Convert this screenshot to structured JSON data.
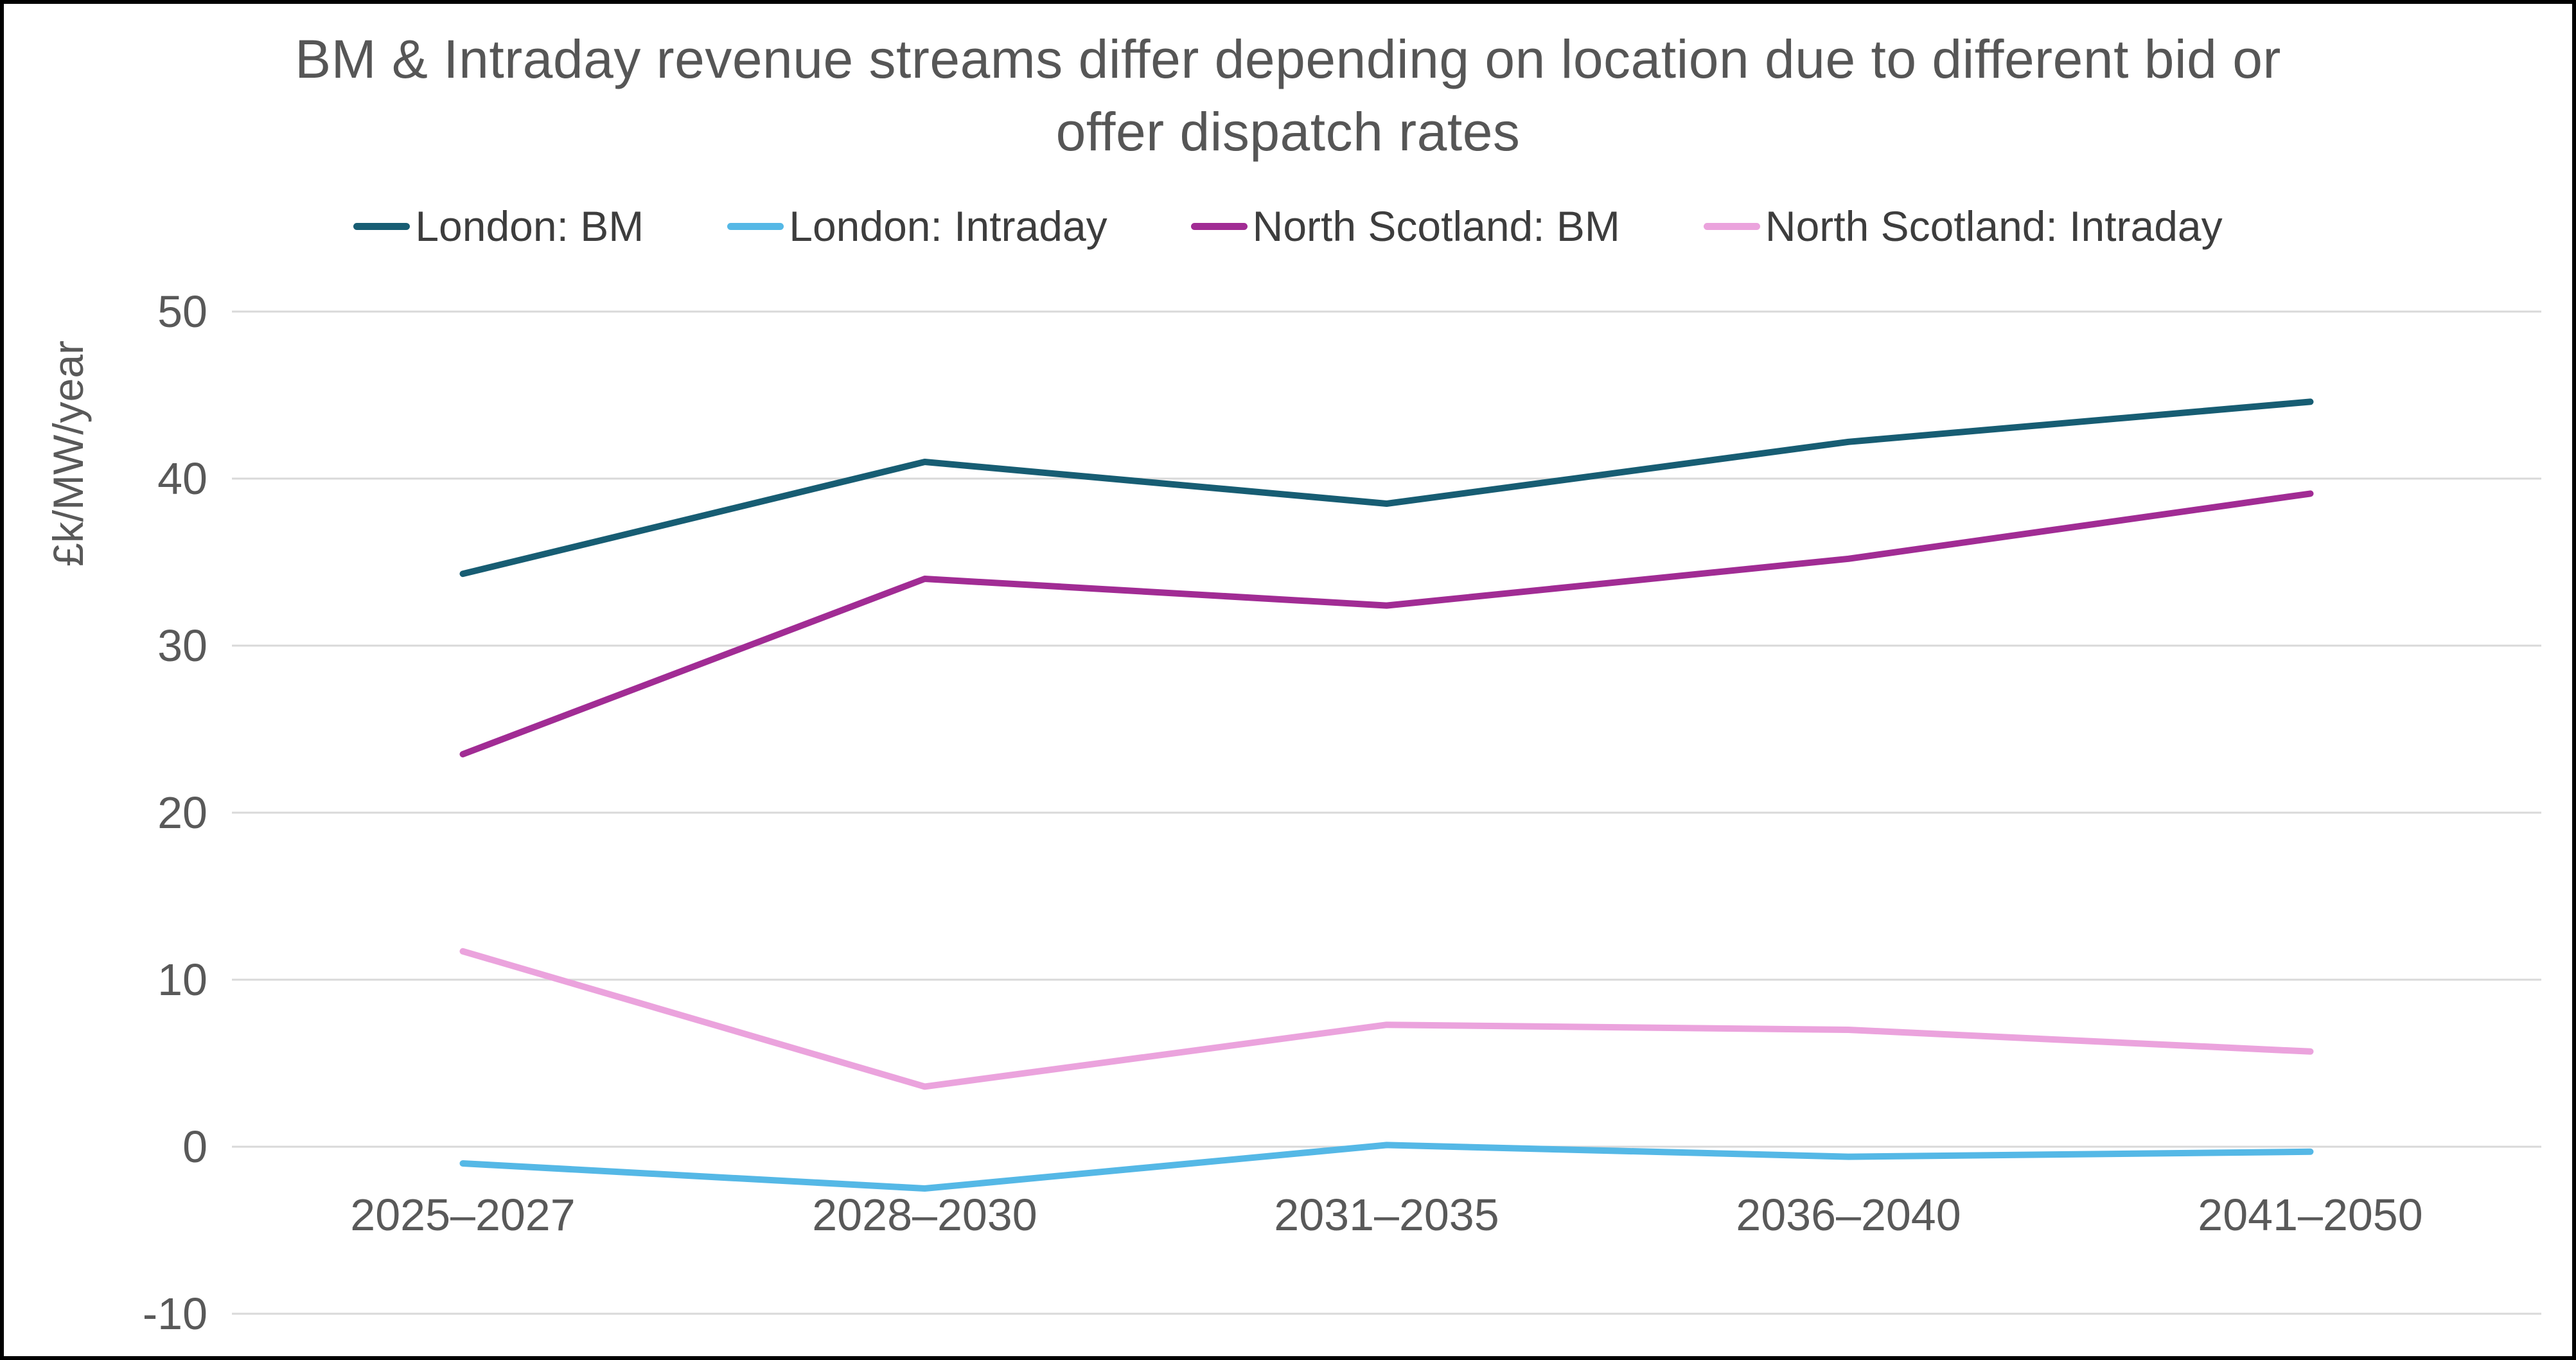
{
  "title": "BM & Intraday revenue streams differ depending on location due to different bid or offer dispatch rates",
  "chart_data": {
    "type": "line",
    "title": "BM & Intraday revenue streams differ depending on location due to different bid or offer dispatch rates",
    "categories": [
      "2025–2027",
      "2028–2030",
      "2031–2035",
      "2036–2040",
      "2041–2050"
    ],
    "series": [
      {
        "name": "London: BM",
        "color": "#175d73",
        "values": [
          34.3,
          41.0,
          38.5,
          42.2,
          44.6
        ]
      },
      {
        "name": "London: Intraday",
        "color": "#55b8e6",
        "values": [
          -1.0,
          -2.5,
          0.1,
          -0.6,
          -0.3
        ]
      },
      {
        "name": "North Scotland: BM",
        "color": "#a12c94",
        "values": [
          23.5,
          34.0,
          32.4,
          35.2,
          39.1
        ]
      },
      {
        "name": "North Scotland: Intraday",
        "color": "#eba3dd",
        "values": [
          11.7,
          3.6,
          7.3,
          7.0,
          5.7
        ]
      }
    ],
    "xlabel": "",
    "ylabel": "£k/MW/year",
    "yticks": [
      -10,
      0,
      10,
      20,
      30,
      40,
      50
    ],
    "ylim": [
      -10,
      50
    ],
    "grid": true,
    "legend_position": "top"
  },
  "colors": {
    "grid": "#d9d9d9",
    "axis_text": "#595959",
    "title_text": "#565656",
    "background": "#ffffff",
    "border": "#000000"
  }
}
